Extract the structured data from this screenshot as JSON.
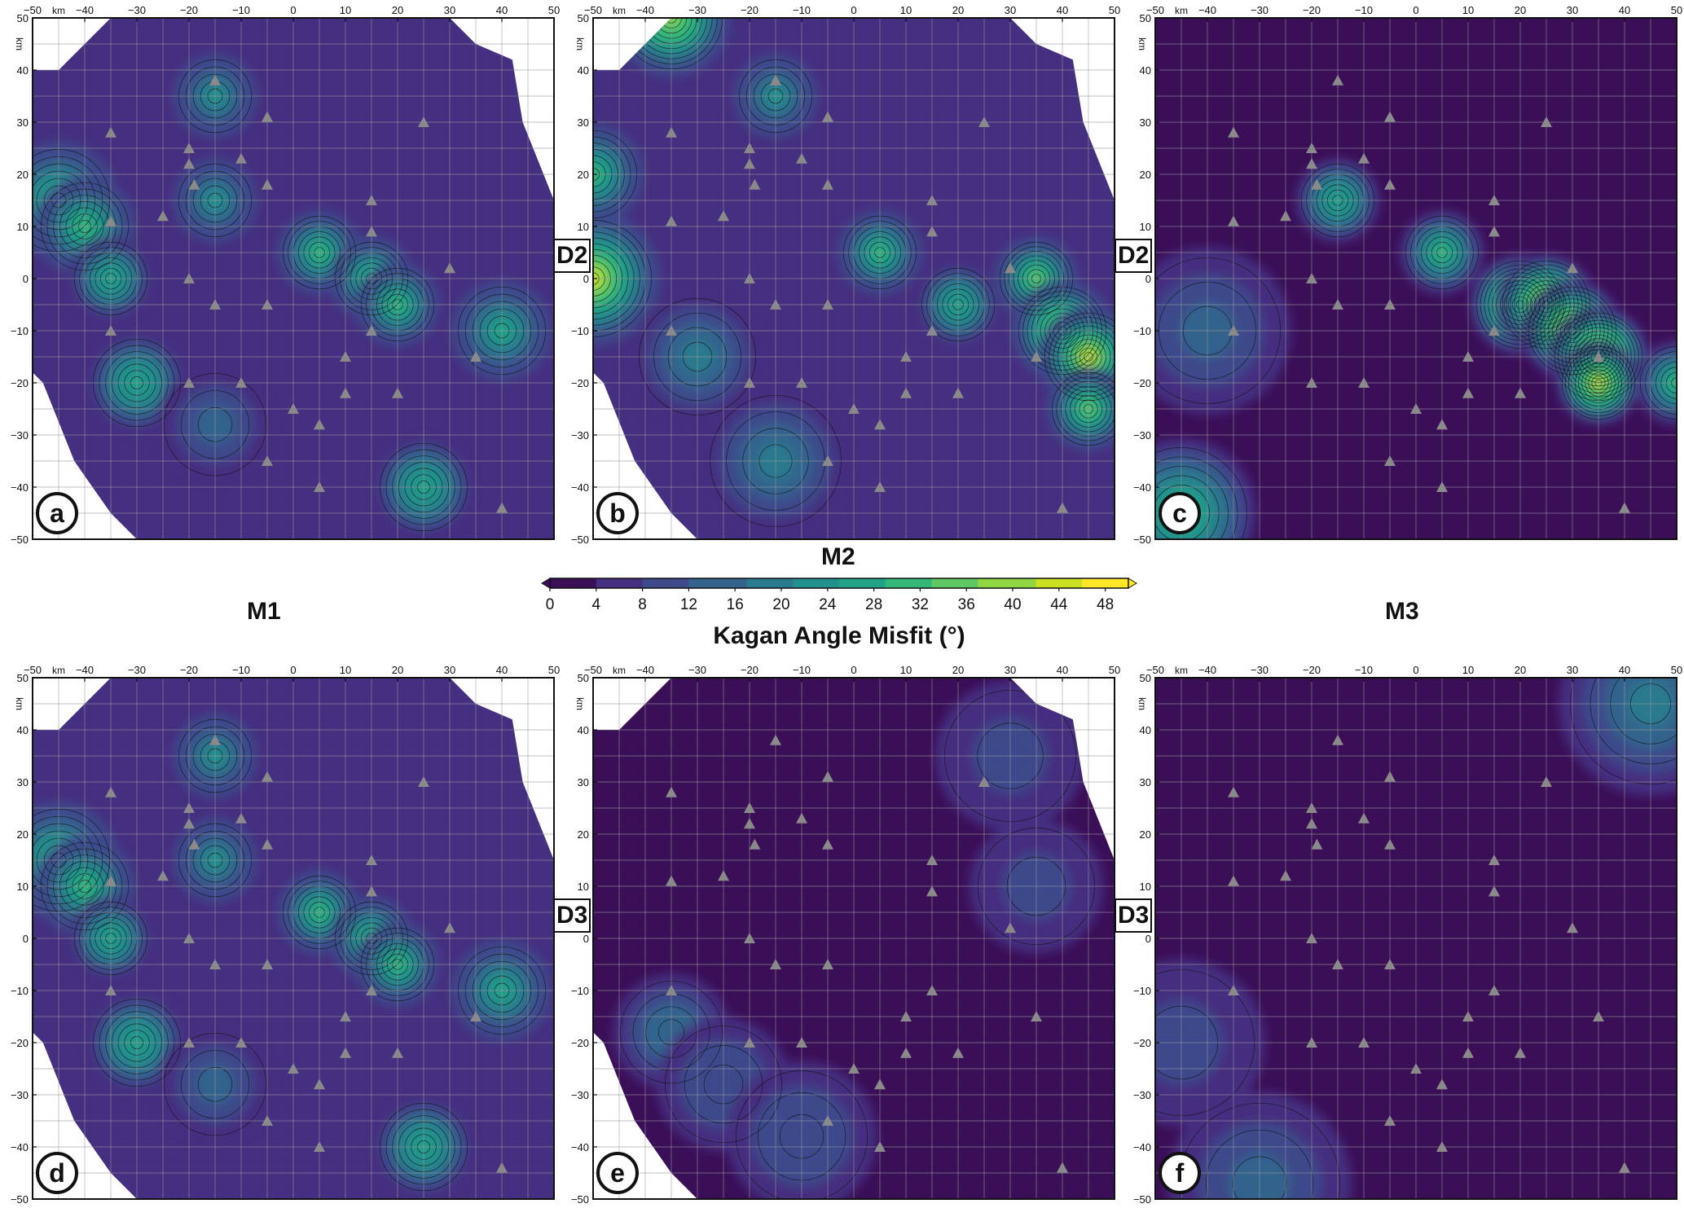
{
  "colorbar": {
    "model_label": "M2",
    "title": "Kagan Angle Misfit (°)",
    "ticks": [
      "0",
      "4",
      "8",
      "12",
      "16",
      "20",
      "24",
      "28",
      "32",
      "36",
      "40",
      "44",
      "48"
    ],
    "range": [
      0,
      50
    ],
    "colormap": [
      "#3b0f58",
      "#452f80",
      "#3e4a8b",
      "#33638d",
      "#297a8e",
      "#21918c",
      "#20a386",
      "#35b779",
      "#5ec962",
      "#90d743",
      "#c8e020",
      "#fde725"
    ]
  },
  "row_labels": {
    "row1_left": "D2",
    "row1_right": "D2",
    "row2_left": "D3",
    "row2_right": "D3"
  },
  "column_labels": {
    "m1": "M1",
    "m3": "M3"
  },
  "axis": {
    "x_ticks": [
      "−50",
      "−40",
      "−30",
      "−20",
      "−10",
      "0",
      "10",
      "20",
      "30",
      "40",
      "50"
    ],
    "y_ticks": [
      "50",
      "40",
      "30",
      "20",
      "10",
      "0",
      "−10",
      "−20",
      "−30",
      "−40",
      "−50"
    ],
    "unit": "km"
  },
  "panels": [
    {
      "letter": "a",
      "model": "M1",
      "dataset": "D2"
    },
    {
      "letter": "b",
      "model": "M2",
      "dataset": "D2"
    },
    {
      "letter": "c",
      "model": "M3",
      "dataset": "D2"
    },
    {
      "letter": "d",
      "model": "M1",
      "dataset": "D3"
    },
    {
      "letter": "e",
      "model": "M2",
      "dataset": "D3"
    },
    {
      "letter": "f",
      "model": "M3",
      "dataset": "D3"
    }
  ],
  "chart_data": [
    {
      "type": "heatmap",
      "panel": "a",
      "x_range": [
        -50,
        50
      ],
      "y_range": [
        -50,
        50
      ],
      "unit": "km",
      "grid": true,
      "background_value": 5,
      "hotspots": [
        {
          "x": -15,
          "y": 35,
          "peak": 22,
          "radius": 5
        },
        {
          "x": -15,
          "y": 15,
          "peak": 22,
          "radius": 5
        },
        {
          "x": -45,
          "y": 15,
          "peak": 30,
          "radius": 7
        },
        {
          "x": -40,
          "y": 10,
          "peak": 30,
          "radius": 6
        },
        {
          "x": -35,
          "y": 0,
          "peak": 28,
          "radius": 5
        },
        {
          "x": -30,
          "y": -20,
          "peak": 28,
          "radius": 6
        },
        {
          "x": -15,
          "y": -28,
          "peak": 14,
          "radius": 7
        },
        {
          "x": 5,
          "y": 5,
          "peak": 30,
          "radius": 5
        },
        {
          "x": 15,
          "y": 0,
          "peak": 30,
          "radius": 5
        },
        {
          "x": 20,
          "y": -5,
          "peak": 30,
          "radius": 5
        },
        {
          "x": 40,
          "y": -10,
          "peak": 26,
          "radius": 6
        },
        {
          "x": 25,
          "y": -40,
          "peak": 28,
          "radius": 6
        }
      ],
      "masked": true
    },
    {
      "type": "heatmap",
      "panel": "b",
      "x_range": [
        -50,
        50
      ],
      "y_range": [
        -50,
        50
      ],
      "unit": "km",
      "grid": true,
      "background_value": 5,
      "hotspots": [
        {
          "x": -35,
          "y": 50,
          "peak": 40,
          "radius": 7
        },
        {
          "x": -15,
          "y": 35,
          "peak": 22,
          "radius": 5
        },
        {
          "x": -50,
          "y": 20,
          "peak": 30,
          "radius": 6
        },
        {
          "x": -50,
          "y": 0,
          "peak": 42,
          "radius": 8
        },
        {
          "x": 5,
          "y": 5,
          "peak": 30,
          "radius": 5
        },
        {
          "x": 20,
          "y": -5,
          "peak": 28,
          "radius": 5
        },
        {
          "x": 35,
          "y": 0,
          "peak": 34,
          "radius": 5
        },
        {
          "x": 40,
          "y": -10,
          "peak": 40,
          "radius": 6
        },
        {
          "x": 45,
          "y": -15,
          "peak": 42,
          "radius": 6
        },
        {
          "x": 45,
          "y": -25,
          "peak": 34,
          "radius": 5
        },
        {
          "x": -30,
          "y": -15,
          "peak": 18,
          "radius": 8
        },
        {
          "x": -15,
          "y": -35,
          "peak": 18,
          "radius": 9
        }
      ],
      "masked": true
    },
    {
      "type": "heatmap",
      "panel": "c",
      "x_range": [
        -50,
        50
      ],
      "y_range": [
        -50,
        50
      ],
      "unit": "km",
      "grid": true,
      "background_value": 4,
      "hotspots": [
        {
          "x": -15,
          "y": 15,
          "peak": 28,
          "radius": 5
        },
        {
          "x": 5,
          "y": 5,
          "peak": 30,
          "radius": 5
        },
        {
          "x": 20,
          "y": -5,
          "peak": 44,
          "radius": 6
        },
        {
          "x": 25,
          "y": -5,
          "peak": 46,
          "radius": 6
        },
        {
          "x": 30,
          "y": -10,
          "peak": 46,
          "radius": 6
        },
        {
          "x": 35,
          "y": -15,
          "peak": 48,
          "radius": 6
        },
        {
          "x": 35,
          "y": -20,
          "peak": 44,
          "radius": 5
        },
        {
          "x": 50,
          "y": -20,
          "peak": 30,
          "radius": 5
        },
        {
          "x": -45,
          "y": -45,
          "peak": 30,
          "radius": 9
        },
        {
          "x": -40,
          "y": -10,
          "peak": 14,
          "radius": 10
        }
      ],
      "masked": false
    },
    {
      "type": "heatmap",
      "panel": "d",
      "x_range": [
        -50,
        50
      ],
      "y_range": [
        -50,
        50
      ],
      "unit": "km",
      "grid": true,
      "background_value": 5,
      "hotspots": [
        {
          "x": -15,
          "y": 35,
          "peak": 22,
          "radius": 5
        },
        {
          "x": -15,
          "y": 15,
          "peak": 22,
          "radius": 5
        },
        {
          "x": -45,
          "y": 15,
          "peak": 30,
          "radius": 7
        },
        {
          "x": -40,
          "y": 10,
          "peak": 30,
          "radius": 6
        },
        {
          "x": -35,
          "y": 0,
          "peak": 28,
          "radius": 5
        },
        {
          "x": -30,
          "y": -20,
          "peak": 28,
          "radius": 6
        },
        {
          "x": -15,
          "y": -28,
          "peak": 14,
          "radius": 7
        },
        {
          "x": 5,
          "y": 5,
          "peak": 30,
          "radius": 5
        },
        {
          "x": 15,
          "y": 0,
          "peak": 30,
          "radius": 5
        },
        {
          "x": 20,
          "y": -5,
          "peak": 30,
          "radius": 5
        },
        {
          "x": 40,
          "y": -10,
          "peak": 26,
          "radius": 6
        },
        {
          "x": 25,
          "y": -40,
          "peak": 28,
          "radius": 6
        }
      ],
      "masked": true
    },
    {
      "type": "heatmap",
      "panel": "e",
      "x_range": [
        -50,
        50
      ],
      "y_range": [
        -50,
        50
      ],
      "unit": "km",
      "grid": true,
      "background_value": 4,
      "hotspots": [
        {
          "x": 30,
          "y": 35,
          "peak": 11,
          "radius": 9
        },
        {
          "x": -35,
          "y": -18,
          "peak": 16,
          "radius": 7
        },
        {
          "x": -25,
          "y": -28,
          "peak": 12,
          "radius": 8
        },
        {
          "x": -10,
          "y": -38,
          "peak": 12,
          "radius": 9
        },
        {
          "x": 35,
          "y": 10,
          "peak": 9,
          "radius": 8
        }
      ],
      "masked": true
    },
    {
      "type": "heatmap",
      "panel": "f",
      "x_range": [
        -50,
        50
      ],
      "y_range": [
        -50,
        50
      ],
      "unit": "km",
      "grid": true,
      "background_value": 4,
      "hotspots": [
        {
          "x": 45,
          "y": 45,
          "peak": 18,
          "radius": 11
        },
        {
          "x": -30,
          "y": -47,
          "peak": 14,
          "radius": 11
        },
        {
          "x": -45,
          "y": -20,
          "peak": 10,
          "radius": 10
        }
      ],
      "masked": false
    }
  ],
  "stations_km": [
    [
      -15,
      38
    ],
    [
      -35,
      28
    ],
    [
      -5,
      31
    ],
    [
      -20,
      25
    ],
    [
      -20,
      22
    ],
    [
      -19,
      18
    ],
    [
      -10,
      23
    ],
    [
      -25,
      12
    ],
    [
      -35,
      11
    ],
    [
      -5,
      18
    ],
    [
      -20,
      0
    ],
    [
      -15,
      -5
    ],
    [
      -5,
      -5
    ],
    [
      -35,
      -10
    ],
    [
      -20,
      -20
    ],
    [
      -10,
      -20
    ],
    [
      0,
      -25
    ],
    [
      10,
      -22
    ],
    [
      20,
      -22
    ],
    [
      35,
      -15
    ],
    [
      40,
      -44
    ],
    [
      15,
      15
    ],
    [
      15,
      -10
    ],
    [
      30,
      2
    ],
    [
      10,
      -15
    ],
    [
      5,
      -28
    ],
    [
      15,
      9
    ],
    [
      25,
      30
    ],
    [
      -5,
      -35
    ],
    [
      5,
      -40
    ]
  ]
}
